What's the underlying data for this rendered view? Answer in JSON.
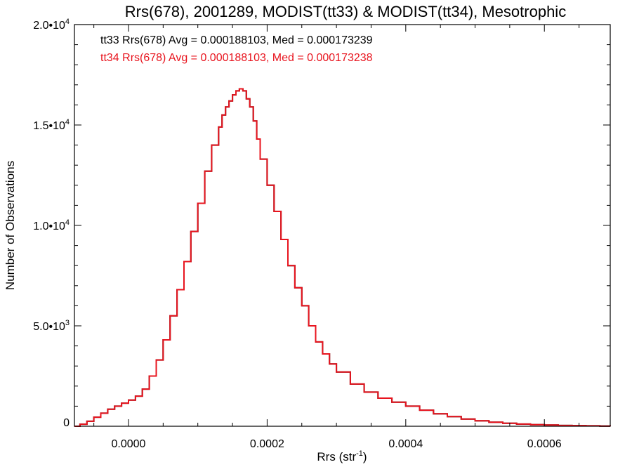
{
  "chart_data": {
    "type": "line",
    "title": "Rrs(678), 2001289, MODIST(tt33) & MODIST(tt34), Mesotrophic",
    "xlabel": {
      "base": "Rrs (str",
      "sup": "-1",
      "suffix": ")"
    },
    "ylabel": "Number of Observations",
    "xlim": [
      -7.8e-05,
      0.000695
    ],
    "ylim": [
      0,
      20000
    ],
    "x_ticks": [
      {
        "value": 0.0,
        "label": "0.0000"
      },
      {
        "value": 0.0002,
        "label": "0.0002"
      },
      {
        "value": 0.0004,
        "label": "0.0004"
      },
      {
        "value": 0.0006,
        "label": "0.0006"
      }
    ],
    "y_ticks": [
      {
        "value": 0,
        "base": "0",
        "sup": ""
      },
      {
        "value": 5000,
        "base": "5.0•10",
        "sup": "3"
      },
      {
        "value": 10000,
        "base": "1.0•10",
        "sup": "4"
      },
      {
        "value": 15000,
        "base": "1.5•10",
        "sup": "4"
      },
      {
        "value": 20000,
        "base": "2.0•10",
        "sup": "4"
      }
    ],
    "annotations": [
      {
        "text": "tt33 Rrs(678) Avg = 0.000188103, Med = 0.000173239",
        "color": "#000000"
      },
      {
        "text": "tt34 Rrs(678) Avg = 0.000188103, Med = 0.000173238",
        "color": "#e8141e"
      }
    ],
    "series": [
      {
        "name": "tt33",
        "color": "#000000",
        "style": "step",
        "x": [
          -7.8e-05,
          -7e-05,
          -6e-05,
          -5e-05,
          -4e-05,
          -3e-05,
          -2e-05,
          -1e-05,
          0.0,
          1e-05,
          2e-05,
          3e-05,
          4e-05,
          5e-05,
          6e-05,
          7e-05,
          8e-05,
          9e-05,
          0.0001,
          0.00011,
          0.00012,
          0.00013,
          0.000135,
          0.00014,
          0.000145,
          0.00015,
          0.000155,
          0.00016,
          0.000165,
          0.00017,
          0.000175,
          0.00018,
          0.000185,
          0.00019,
          0.0002,
          0.00021,
          0.00022,
          0.00023,
          0.00024,
          0.00025,
          0.00026,
          0.00027,
          0.00028,
          0.00029,
          0.0003,
          0.00032,
          0.00034,
          0.00036,
          0.00038,
          0.0004,
          0.00042,
          0.00044,
          0.00046,
          0.00048,
          0.0005,
          0.00052,
          0.00054,
          0.00056,
          0.00058,
          0.0006,
          0.00062,
          0.00064,
          0.00066,
          0.00068,
          0.000695
        ],
        "y": [
          0,
          100,
          250,
          450,
          650,
          850,
          1000,
          1150,
          1300,
          1500,
          1850,
          2500,
          3300,
          4300,
          5500,
          6800,
          8200,
          9700,
          11100,
          12700,
          14000,
          14900,
          15500,
          15900,
          16200,
          16500,
          16700,
          16800,
          16700,
          16300,
          15900,
          15200,
          14300,
          13300,
          12000,
          10700,
          9300,
          8000,
          6900,
          6000,
          5000,
          4200,
          3600,
          3100,
          2700,
          2100,
          1700,
          1400,
          1200,
          1000,
          800,
          620,
          480,
          360,
          270,
          200,
          150,
          110,
          80,
          60,
          40,
          30,
          20,
          10,
          5
        ]
      },
      {
        "name": "tt34",
        "color": "#e8141e",
        "style": "step",
        "x": [
          -7.8e-05,
          -7e-05,
          -6e-05,
          -5e-05,
          -4e-05,
          -3e-05,
          -2e-05,
          -1e-05,
          0.0,
          1e-05,
          2e-05,
          3e-05,
          4e-05,
          5e-05,
          6e-05,
          7e-05,
          8e-05,
          9e-05,
          0.0001,
          0.00011,
          0.00012,
          0.00013,
          0.000135,
          0.00014,
          0.000145,
          0.00015,
          0.000155,
          0.00016,
          0.000165,
          0.00017,
          0.000175,
          0.00018,
          0.000185,
          0.00019,
          0.0002,
          0.00021,
          0.00022,
          0.00023,
          0.00024,
          0.00025,
          0.00026,
          0.00027,
          0.00028,
          0.00029,
          0.0003,
          0.00032,
          0.00034,
          0.00036,
          0.00038,
          0.0004,
          0.00042,
          0.00044,
          0.00046,
          0.00048,
          0.0005,
          0.00052,
          0.00054,
          0.00056,
          0.00058,
          0.0006,
          0.00062,
          0.00064,
          0.00066,
          0.00068,
          0.000695
        ],
        "y": [
          0,
          100,
          250,
          450,
          650,
          850,
          1000,
          1150,
          1300,
          1500,
          1850,
          2500,
          3300,
          4300,
          5500,
          6800,
          8200,
          9700,
          11100,
          12700,
          14000,
          14900,
          15500,
          15900,
          16200,
          16500,
          16700,
          16800,
          16700,
          16300,
          15900,
          15200,
          14300,
          13300,
          12000,
          10700,
          9300,
          8000,
          6900,
          6000,
          5000,
          4200,
          3600,
          3100,
          2700,
          2100,
          1700,
          1400,
          1200,
          1000,
          800,
          620,
          480,
          360,
          270,
          200,
          150,
          110,
          80,
          60,
          40,
          30,
          20,
          10,
          5
        ]
      }
    ]
  }
}
